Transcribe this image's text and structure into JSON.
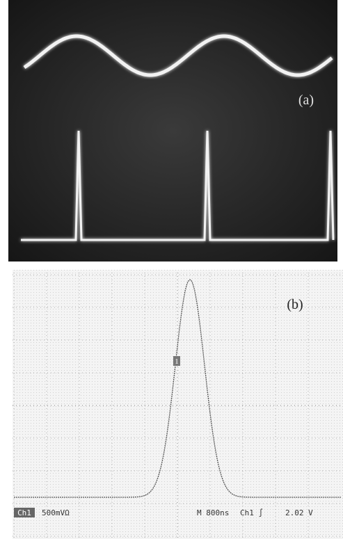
{
  "panel_a": {
    "label": "(a)"
  },
  "panel_b": {
    "label": "(b)",
    "marker": "1",
    "readout": {
      "channel": "Ch1",
      "scale": "500mVΩ",
      "time": "M 800ns",
      "trigger": "Ch1 ∫",
      "level": "2.02 V"
    }
  }
}
